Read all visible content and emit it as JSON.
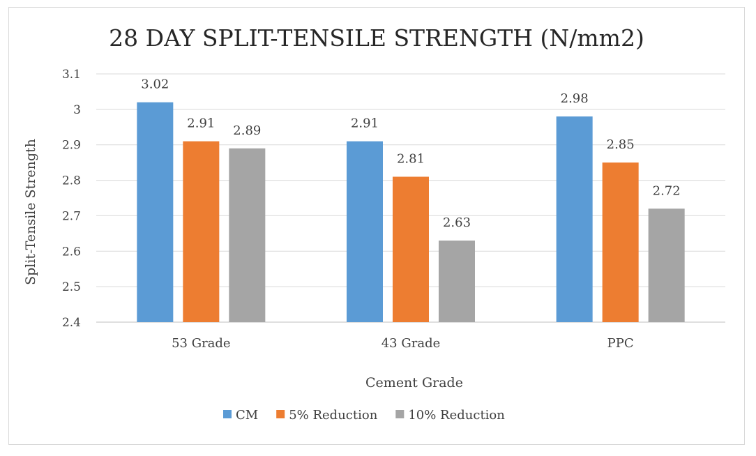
{
  "chart_data": {
    "type": "bar",
    "title": "28 DAY SPLIT-TENSILE STRENGTH (N/mm2)",
    "xlabel": "Cement Grade",
    "ylabel": "Split-Tensile Strength",
    "categories": [
      "53 Grade",
      "43 Grade",
      "PPC"
    ],
    "series": [
      {
        "name": "CM",
        "color": "#5b9bd5",
        "values": [
          3.02,
          2.91,
          2.98
        ]
      },
      {
        "name": "5% Reduction",
        "color": "#ed7d31",
        "values": [
          2.91,
          2.81,
          2.85
        ]
      },
      {
        "name": "10% Reduction",
        "color": "#a5a5a5",
        "values": [
          2.89,
          2.63,
          2.72
        ]
      }
    ],
    "ylim": [
      2.4,
      3.1
    ],
    "yticks": [
      "2.4",
      "2.5",
      "2.6",
      "2.7",
      "2.8",
      "2.9",
      "3",
      "3.1"
    ],
    "grid": true,
    "legend_position": "bottom"
  }
}
